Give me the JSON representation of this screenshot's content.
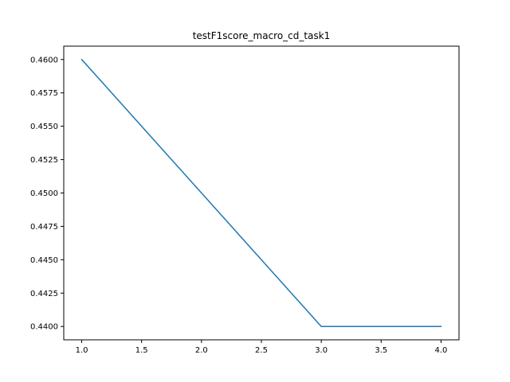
{
  "chart_data": {
    "type": "line",
    "title": "testF1score_macro_cd_task1",
    "xlabel": "",
    "ylabel": "",
    "x": [
      1.0,
      2.0,
      3.0,
      4.0
    ],
    "series": [
      {
        "values": [
          0.46,
          0.45,
          0.44,
          0.44
        ],
        "color": "#1f77b4"
      }
    ],
    "xlim": [
      0.85,
      4.15
    ],
    "ylim": [
      0.439,
      0.461
    ],
    "x_ticks": [
      1.0,
      1.5,
      2.0,
      2.5,
      3.0,
      3.5,
      4.0
    ],
    "x_tick_labels": [
      "1.0",
      "1.5",
      "2.0",
      "2.5",
      "3.0",
      "3.5",
      "4.0"
    ],
    "y_ticks": [
      0.44,
      0.4425,
      0.445,
      0.4475,
      0.45,
      0.4525,
      0.455,
      0.4575,
      0.46
    ],
    "y_tick_labels": [
      "0.4400",
      "0.4425",
      "0.4450",
      "0.4475",
      "0.4500",
      "0.4525",
      "0.4550",
      "0.4575",
      "0.4600"
    ],
    "grid": false,
    "legend": "none"
  }
}
